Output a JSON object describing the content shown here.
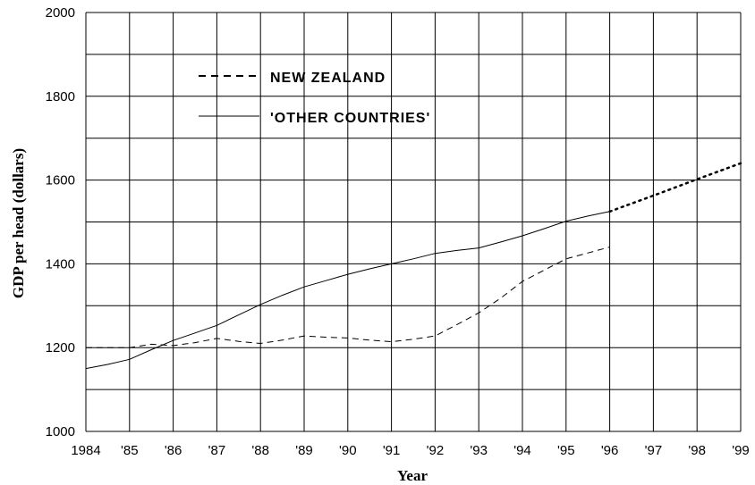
{
  "chart_data": {
    "type": "line",
    "xlabel": "Year",
    "ylabel": "GDP per head (dollars)",
    "xlim": [
      1984,
      1999
    ],
    "ylim": [
      1000,
      2000
    ],
    "x_ticks": [
      "1984",
      "'85",
      "'86",
      "'87",
      "'88",
      "'89",
      "'90",
      "'91",
      "'92",
      "'93",
      "'94",
      "'95",
      "'96",
      "'97",
      "'98",
      "'99"
    ],
    "y_ticks": [
      "1000",
      "1200",
      "1400",
      "1600",
      "1800",
      "2000"
    ],
    "grid": true,
    "legend_position": "top-left",
    "series": [
      {
        "name": "NEW ZEALAND",
        "style": "dashed",
        "x": [
          1984,
          1984.5,
          1985,
          1985.5,
          1986,
          1986.5,
          1987,
          1987.5,
          1988,
          1988.5,
          1989,
          1989.5,
          1990,
          1990.5,
          1991,
          1991.5,
          1992,
          1992.5,
          1993,
          1993.5,
          1994,
          1994.5,
          1995,
          1995.5,
          1996
        ],
        "values": [
          1200,
          1200,
          1200,
          1208,
          1205,
          1212,
          1222,
          1215,
          1210,
          1218,
          1228,
          1225,
          1223,
          1218,
          1214,
          1220,
          1228,
          1255,
          1283,
          1318,
          1358,
          1385,
          1412,
          1426,
          1440
        ]
      },
      {
        "name": "'OTHER COUNTRIES'",
        "style": "solid",
        "x": [
          1984,
          1984.5,
          1985,
          1985.5,
          1986,
          1986.5,
          1987,
          1987.5,
          1988,
          1988.5,
          1989,
          1989.5,
          1990,
          1990.5,
          1991,
          1991.5,
          1992,
          1992.5,
          1993,
          1993.5,
          1994,
          1994.5,
          1995,
          1995.5,
          1996
        ],
        "values": [
          1150,
          1160,
          1172,
          1195,
          1217,
          1235,
          1253,
          1278,
          1303,
          1325,
          1345,
          1360,
          1375,
          1388,
          1400,
          1412,
          1425,
          1432,
          1438,
          1452,
          1467,
          1484,
          1502,
          1514,
          1525
        ]
      },
      {
        "name": "",
        "style": "dotted",
        "x": [
          1996,
          1997,
          1998,
          1999
        ],
        "values": [
          1525,
          1563,
          1602,
          1640
        ]
      }
    ]
  }
}
